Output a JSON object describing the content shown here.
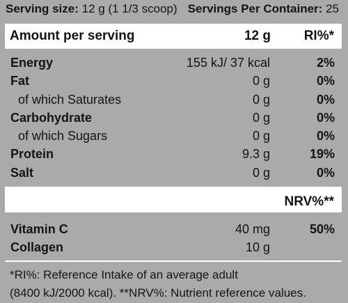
{
  "serving": {
    "size_label": "Serving size:",
    "size_value": "12 g (1 1/3 scoop)",
    "per_container_label": "Servings Per Container:",
    "per_container_value": "25"
  },
  "header": {
    "col_name": "Amount per serving",
    "col_amount": "12 g",
    "col_pct": "RI%*"
  },
  "nutrients": [
    {
      "name": "Energy",
      "amount": "155 kJ/ 37 kcal",
      "pct": "2%"
    },
    {
      "name": "Fat",
      "amount": "0 g",
      "pct": "0%"
    },
    {
      "name": "of which Saturates",
      "amount": "0 g",
      "pct": "0%"
    },
    {
      "name": "Carbohydrate",
      "amount": "0 g",
      "pct": "0%"
    },
    {
      "name": "of which Sugars",
      "amount": "0 g",
      "pct": "0%"
    },
    {
      "name": "Protein",
      "amount": "9.3 g",
      "pct": "19%"
    },
    {
      "name": "Salt",
      "amount": "0 g",
      "pct": "0%"
    }
  ],
  "nrv_header": "NRV%**",
  "vitamins": [
    {
      "name": "Vitamin C",
      "amount": "40 mg",
      "pct": "50%"
    },
    {
      "name": "Collagen",
      "amount": "10 g",
      "pct": ""
    }
  ],
  "footnote": {
    "line1": "*RI%: Reference Intake of an average adult",
    "line2": "(8400 kJ/2000 kcal). **NRV%: Nutrient reference values."
  }
}
